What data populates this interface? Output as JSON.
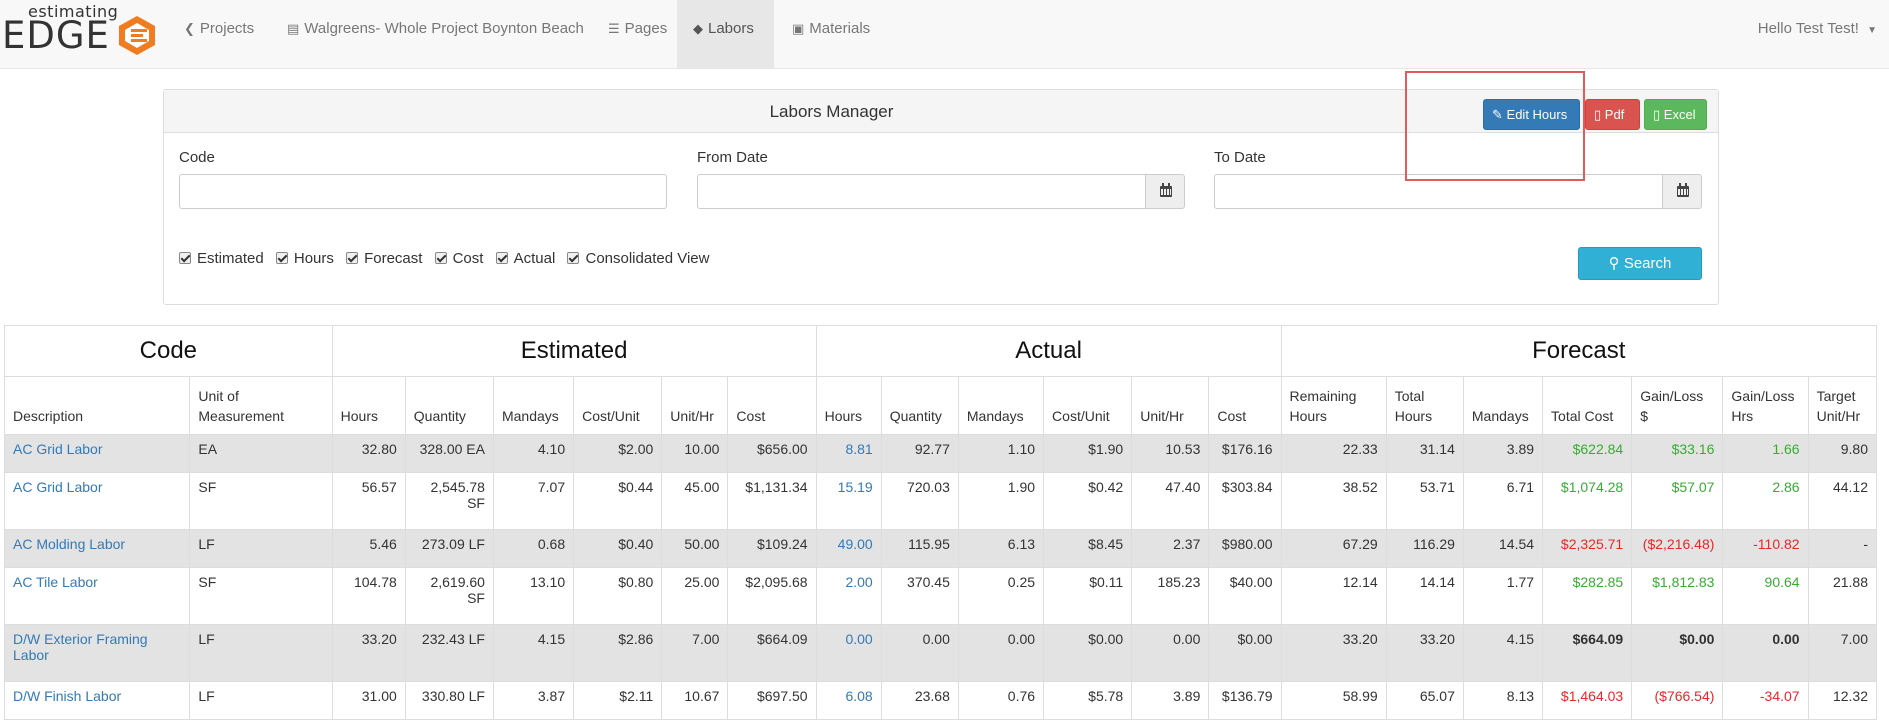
{
  "brand": {
    "small": "estimating",
    "big": "EDGE"
  },
  "nav": {
    "items": [
      {
        "icon": "chevron-circle-left-icon",
        "glyph": "❮",
        "label": "Projects"
      },
      {
        "icon": "id-card-icon",
        "glyph": "▤",
        "label": "Walgreens- Whole Project Boynton Beach"
      },
      {
        "icon": "list-icon",
        "glyph": "☰",
        "label": "Pages"
      },
      {
        "icon": "handshake-icon",
        "glyph": "◆",
        "label": "Labors"
      },
      {
        "icon": "briefcase-icon",
        "glyph": "▣",
        "label": "Materials"
      }
    ],
    "user": "Hello Test Test!"
  },
  "panel": {
    "title": "Labors Manager",
    "buttons": {
      "edit": "Edit Hours",
      "pdf": "Pdf",
      "excel": "Excel"
    },
    "fields": {
      "code": {
        "label": "Code",
        "value": ""
      },
      "from": {
        "label": "From Date",
        "value": ""
      },
      "to": {
        "label": "To Date",
        "value": ""
      }
    },
    "checks": [
      "Estimated",
      "Hours",
      "Forecast",
      "Cost",
      "Actual",
      "Consolidated View"
    ],
    "search": "Search"
  },
  "table": {
    "groups": {
      "code": "Code",
      "estimated": "Estimated",
      "actual": "Actual",
      "forecast": "Forecast"
    },
    "headers": {
      "description": "Description",
      "uom": "Unit of Measurement",
      "e_hours": "Hours",
      "e_qty": "Quantity",
      "e_mandays": "Mandays",
      "e_costunit": "Cost/Unit",
      "e_unithr": "Unit/Hr",
      "e_cost": "Cost",
      "a_hours": "Hours",
      "a_qty": "Quantity",
      "a_mandays": "Mandays",
      "a_costunit": "Cost/Unit",
      "a_unithr": "Unit/Hr",
      "a_cost": "Cost",
      "f_remaining": "Remaining Hours",
      "f_total_hours": "Total Hours",
      "f_mandays": "Mandays",
      "f_total_cost": "Total Cost",
      "f_gl_dollar": "Gain/Loss $",
      "f_gl_hrs": "Gain/Loss Hrs",
      "f_target": "Target Unit/Hr"
    },
    "rows": [
      {
        "description": "AC Grid Labor",
        "uom": "EA",
        "e_hours": "32.80",
        "e_qty": "328.00 EA",
        "e_mandays": "4.10",
        "e_costunit": "$2.00",
        "e_unithr": "10.00",
        "e_cost": "$656.00",
        "a_hours": "8.81",
        "a_qty": "92.77",
        "a_mandays": "1.10",
        "a_costunit": "$1.90",
        "a_unithr": "10.53",
        "a_cost": "$176.16",
        "f_remaining": "22.33",
        "f_total_hours": "31.14",
        "f_mandays": "3.89",
        "f_total_cost": "$622.84",
        "f_gl_dollar": "$33.16",
        "f_gl_hrs": "1.66",
        "f_target": "9.80",
        "status": "gain"
      },
      {
        "description": "AC Grid Labor",
        "uom": "SF",
        "e_hours": "56.57",
        "e_qty": "2,545.78 SF",
        "e_mandays": "7.07",
        "e_costunit": "$0.44",
        "e_unithr": "45.00",
        "e_cost": "$1,131.34",
        "a_hours": "15.19",
        "a_qty": "720.03",
        "a_mandays": "1.90",
        "a_costunit": "$0.42",
        "a_unithr": "47.40",
        "a_cost": "$303.84",
        "f_remaining": "38.52",
        "f_total_hours": "53.71",
        "f_mandays": "6.71",
        "f_total_cost": "$1,074.28",
        "f_gl_dollar": "$57.07",
        "f_gl_hrs": "2.86",
        "f_target": "44.12",
        "status": "gain"
      },
      {
        "description": "AC Molding Labor",
        "uom": "LF",
        "e_hours": "5.46",
        "e_qty": "273.09 LF",
        "e_mandays": "0.68",
        "e_costunit": "$0.40",
        "e_unithr": "50.00",
        "e_cost": "$109.24",
        "a_hours": "49.00",
        "a_qty": "115.95",
        "a_mandays": "6.13",
        "a_costunit": "$8.45",
        "a_unithr": "2.37",
        "a_cost": "$980.00",
        "f_remaining": "67.29",
        "f_total_hours": "116.29",
        "f_mandays": "14.54",
        "f_total_cost": "$2,325.71",
        "f_gl_dollar": "($2,216.48)",
        "f_gl_hrs": "-110.82",
        "f_target": "-",
        "status": "loss"
      },
      {
        "description": "AC Tile Labor",
        "uom": "SF",
        "e_hours": "104.78",
        "e_qty": "2,619.60 SF",
        "e_mandays": "13.10",
        "e_costunit": "$0.80",
        "e_unithr": "25.00",
        "e_cost": "$2,095.68",
        "a_hours": "2.00",
        "a_qty": "370.45",
        "a_mandays": "0.25",
        "a_costunit": "$0.11",
        "a_unithr": "185.23",
        "a_cost": "$40.00",
        "f_remaining": "12.14",
        "f_total_hours": "14.14",
        "f_mandays": "1.77",
        "f_total_cost": "$282.85",
        "f_gl_dollar": "$1,812.83",
        "f_gl_hrs": "90.64",
        "f_target": "21.88",
        "status": "gain"
      },
      {
        "description": "D/W Exterior Framing Labor",
        "uom": "LF",
        "e_hours": "33.20",
        "e_qty": "232.43 LF",
        "e_mandays": "4.15",
        "e_costunit": "$2.86",
        "e_unithr": "7.00",
        "e_cost": "$664.09",
        "a_hours": "0.00",
        "a_qty": "0.00",
        "a_mandays": "0.00",
        "a_costunit": "$0.00",
        "a_unithr": "0.00",
        "a_cost": "$0.00",
        "f_remaining": "33.20",
        "f_total_hours": "33.20",
        "f_mandays": "4.15",
        "f_total_cost": "$664.09",
        "f_gl_dollar": "$0.00",
        "f_gl_hrs": "0.00",
        "f_target": "7.00",
        "status": "neutral"
      },
      {
        "description": "D/W Finish Labor",
        "uom": "LF",
        "e_hours": "31.00",
        "e_qty": "330.80 LF",
        "e_mandays": "3.87",
        "e_costunit": "$2.11",
        "e_unithr": "10.67",
        "e_cost": "$697.50",
        "a_hours": "6.08",
        "a_qty": "23.68",
        "a_mandays": "0.76",
        "a_costunit": "$5.78",
        "a_unithr": "3.89",
        "a_cost": "$136.79",
        "f_remaining": "58.99",
        "f_total_hours": "65.07",
        "f_mandays": "8.13",
        "f_total_cost": "$1,464.03",
        "f_gl_dollar": "($766.54)",
        "f_gl_hrs": "-34.07",
        "f_target": "12.32",
        "status": "loss"
      }
    ]
  },
  "colors": {
    "primary": "#337ab7",
    "danger": "#d9534f",
    "success": "#5cb85c",
    "info": "#31b0d5",
    "gain": "#3aaa35",
    "loss": "#e8272a",
    "brand_orange": "#f07c22"
  }
}
